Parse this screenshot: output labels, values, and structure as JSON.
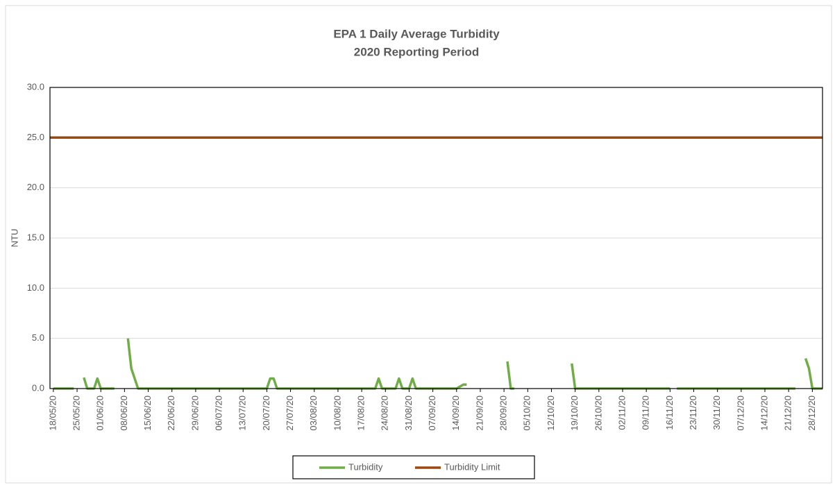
{
  "chart_data": {
    "type": "line",
    "title": "EPA 1 Daily Average Turbidity",
    "subtitle": "2020 Reporting Period",
    "y_label": "NTU",
    "ylim": [
      0,
      30
    ],
    "yticks": [
      {
        "value": 0,
        "label": "0.0"
      },
      {
        "value": 5,
        "label": "5.0"
      },
      {
        "value": 10,
        "label": "10.0"
      },
      {
        "value": 15,
        "label": "15.0"
      },
      {
        "value": 20,
        "label": "20.0"
      },
      {
        "value": 25,
        "label": "25.0"
      },
      {
        "value": 30,
        "label": "30.0"
      }
    ],
    "xlim": [
      "17/05/20",
      "31/12/20"
    ],
    "xticks": [
      "18/05/20",
      "25/05/20",
      "01/06/20",
      "08/06/20",
      "15/06/20",
      "22/06/20",
      "29/06/20",
      "06/07/20",
      "13/07/20",
      "20/07/20",
      "27/07/20",
      "03/08/20",
      "10/08/20",
      "17/08/20",
      "24/08/20",
      "31/08/20",
      "07/09/20",
      "14/09/20",
      "21/09/20",
      "28/09/20",
      "05/10/20",
      "12/10/20",
      "19/10/20",
      "26/10/20",
      "02/11/20",
      "09/11/20",
      "16/11/20",
      "23/11/20",
      "30/11/20",
      "07/12/20",
      "14/12/20",
      "21/12/20",
      "28/12/20"
    ],
    "grid": true,
    "legend": "bottom",
    "series": [
      {
        "name": "Turbidity",
        "color": "#70ad47",
        "x": [
          "18/05/20",
          "24/05/20",
          "25/05/20",
          "27/05/20",
          "28/05/20",
          "30/05/20",
          "31/05/20",
          "01/06/20",
          "05/06/20",
          "07/06/20",
          "09/06/20",
          "10/06/20",
          "12/06/20",
          "20/07/20",
          "21/07/20",
          "22/07/20",
          "23/07/20",
          "21/08/20",
          "22/08/20",
          "23/08/20",
          "27/08/20",
          "28/08/20",
          "29/08/20",
          "31/08/20",
          "01/09/20",
          "02/09/20",
          "14/09/20",
          "16/09/20",
          "17/09/20",
          "20/09/20",
          "29/09/20",
          "30/09/20",
          "01/10/20",
          "10/10/20",
          "18/10/20",
          "19/10/20",
          "16/11/20",
          "17/11/20",
          "18/11/20",
          "23/12/20",
          "25/12/20",
          "26/12/20",
          "27/12/20",
          "28/12/20",
          "31/12/20"
        ],
        "values": [
          0,
          0,
          null,
          1.1,
          0,
          0,
          1.0,
          0,
          0,
          null,
          5.0,
          2.0,
          0,
          0,
          1.0,
          1.0,
          0,
          0,
          1.0,
          0,
          0,
          1.0,
          0,
          0,
          1.0,
          0,
          0,
          0.4,
          0.4,
          null,
          2.7,
          0,
          0,
          null,
          2.5,
          0,
          0,
          null,
          0,
          0,
          null,
          3.0,
          2.0,
          0,
          0
        ]
      },
      {
        "name": "Turbidity Limit",
        "color": "#9e480e",
        "x": [
          "17/05/20",
          "31/12/20"
        ],
        "values": [
          25,
          25
        ]
      }
    ]
  }
}
